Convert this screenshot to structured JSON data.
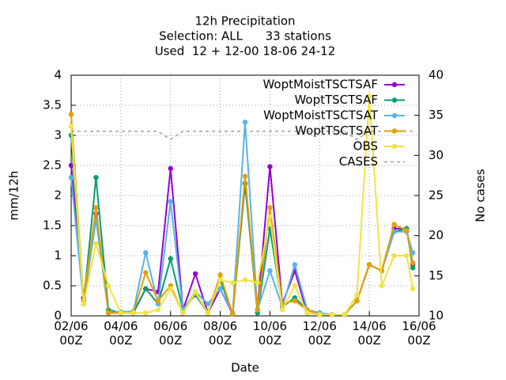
{
  "chart_data": {
    "type": "line",
    "title": "12h Precipitation",
    "subtitle": [
      "Selection: ALL      33 stations",
      "Used  12 + 12-00 18-06 24-12"
    ],
    "xlabel": "Date",
    "ylabel": "mm/12h",
    "y2label": "No cases",
    "x": [
      0,
      0.5,
      1,
      1.5,
      2,
      2.5,
      3,
      3.5,
      4,
      4.5,
      5,
      5.5,
      6,
      6.5,
      7,
      7.5,
      8,
      8.5,
      9,
      9.5,
      10,
      10.5,
      11,
      11.5,
      12,
      12.5,
      13,
      13.5,
      13.75
    ],
    "xlim": [
      0,
      14
    ],
    "xticks": [
      {
        "value": 0,
        "label": "02/06\n00Z"
      },
      {
        "value": 2,
        "label": "04/06\n00Z"
      },
      {
        "value": 4,
        "label": "06/06\n00Z"
      },
      {
        "value": 6,
        "label": "08/06\n00Z"
      },
      {
        "value": 8,
        "label": "10/06\n00Z"
      },
      {
        "value": 10,
        "label": "12/06\n00Z"
      },
      {
        "value": 12,
        "label": "14/06\n00Z"
      },
      {
        "value": 14,
        "label": "16/06\n00Z"
      }
    ],
    "ylim": [
      0,
      4
    ],
    "yticks": [
      0,
      0.5,
      1,
      1.5,
      2,
      2.5,
      3,
      3.5,
      4
    ],
    "y2lim": [
      10,
      40
    ],
    "y2ticks": [
      10,
      15,
      20,
      25,
      30,
      35,
      40
    ],
    "grid": true,
    "legend": "top-right",
    "series": [
      {
        "name": "WoptMoistTSCTSAF",
        "color": "#9400d3",
        "values": [
          2.5,
          0.3,
          1.7,
          0.05,
          0.05,
          0.05,
          0.45,
          0.4,
          2.45,
          0.1,
          0.7,
          0.05,
          0.45,
          0.03,
          2.2,
          0.1,
          2.48,
          0.2,
          0.75,
          0.05,
          0.02,
          0.02,
          0.02,
          0.25,
          0.85,
          0.75,
          1.45,
          1.45,
          0.85
        ]
      },
      {
        "name": "WoptTSCTSAF",
        "color": "#009e73",
        "values": [
          3.0,
          0.2,
          2.3,
          0.1,
          0.05,
          0.05,
          0.45,
          0.2,
          0.95,
          0.1,
          0.35,
          0.05,
          0.6,
          0.03,
          2.2,
          0.05,
          1.45,
          0.15,
          0.3,
          0.1,
          0.02,
          0.02,
          0.02,
          0.25,
          0.85,
          0.75,
          1.4,
          1.45,
          0.8
        ]
      },
      {
        "name": "WoptMoistTSCTSAT",
        "color": "#56b4e9",
        "values": [
          2.3,
          0.2,
          1.6,
          0.05,
          0.07,
          0.07,
          1.05,
          0.2,
          1.9,
          0.1,
          0.4,
          0.2,
          0.45,
          0.05,
          3.22,
          0.1,
          0.75,
          0.15,
          0.85,
          0.1,
          0.05,
          0.02,
          0.02,
          0.25,
          0.85,
          0.75,
          1.4,
          1.4,
          1.05
        ]
      },
      {
        "name": "WoptTSCTSAT",
        "color": "#e69f00",
        "values": [
          3.35,
          0.25,
          1.8,
          0.05,
          0.05,
          0.05,
          0.72,
          0.25,
          0.5,
          0.05,
          0.38,
          0.05,
          0.68,
          0.03,
          2.32,
          0.1,
          1.8,
          0.2,
          0.25,
          0.1,
          0.02,
          0.02,
          0.02,
          0.25,
          0.85,
          0.75,
          1.52,
          1.42,
          0.88
        ]
      },
      {
        "name": "OBS",
        "color": "#f0e442",
        "values": [
          3.15,
          0.2,
          1.2,
          0.5,
          0.05,
          0.05,
          0.05,
          0.1,
          0.45,
          0.05,
          0.4,
          0.05,
          0.6,
          0.55,
          0.6,
          0.55,
          1.65,
          0.1,
          0.5,
          0.05,
          0.02,
          0.02,
          0.02,
          0.35,
          3.65,
          0.5,
          1.0,
          1.0,
          0.45
        ]
      },
      {
        "name": "CASES",
        "color": "#a0a0a0",
        "dashed": true,
        "axis": "y2",
        "values": [
          33,
          33,
          33,
          33,
          33,
          33,
          33,
          33,
          32,
          33,
          33,
          33,
          33,
          33,
          33,
          33,
          33,
          33,
          33,
          33,
          33,
          33,
          33,
          32,
          33,
          33,
          33,
          33,
          33
        ]
      }
    ]
  }
}
